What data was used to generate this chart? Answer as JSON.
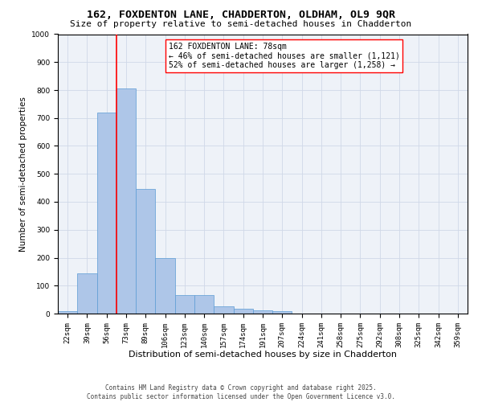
{
  "title1": "162, FOXDENTON LANE, CHADDERTON, OLDHAM, OL9 9QR",
  "title2": "Size of property relative to semi-detached houses in Chadderton",
  "xlabel": "Distribution of semi-detached houses by size in Chadderton",
  "ylabel": "Number of semi-detached properties",
  "bin_labels": [
    "22sqm",
    "39sqm",
    "56sqm",
    "73sqm",
    "89sqm",
    "106sqm",
    "123sqm",
    "140sqm",
    "157sqm",
    "174sqm",
    "191sqm",
    "207sqm",
    "224sqm",
    "241sqm",
    "258sqm",
    "275sqm",
    "292sqm",
    "308sqm",
    "325sqm",
    "342sqm",
    "359sqm"
  ],
  "bin_values": [
    8,
    145,
    720,
    805,
    445,
    200,
    65,
    65,
    25,
    18,
    12,
    8,
    0,
    0,
    0,
    0,
    0,
    0,
    0,
    0,
    0
  ],
  "bar_color": "#aec6e8",
  "bar_edge_color": "#5b9bd5",
  "vline_bin_index": 3,
  "vline_color": "red",
  "annotation_text": "162 FOXDENTON LANE: 78sqm\n← 46% of semi-detached houses are smaller (1,121)\n52% of semi-detached houses are larger (1,258) →",
  "ylim": [
    0,
    1000
  ],
  "yticks": [
    0,
    100,
    200,
    300,
    400,
    500,
    600,
    700,
    800,
    900,
    1000
  ],
  "grid_color": "#d0d8e8",
  "background_color": "#eef2f8",
  "footer": "Contains HM Land Registry data © Crown copyright and database right 2025.\nContains public sector information licensed under the Open Government Licence v3.0.",
  "title1_fontsize": 9.5,
  "title2_fontsize": 8,
  "xlabel_fontsize": 8,
  "ylabel_fontsize": 7.5,
  "tick_fontsize": 6.5,
  "annotation_fontsize": 7,
  "footer_fontsize": 5.5
}
